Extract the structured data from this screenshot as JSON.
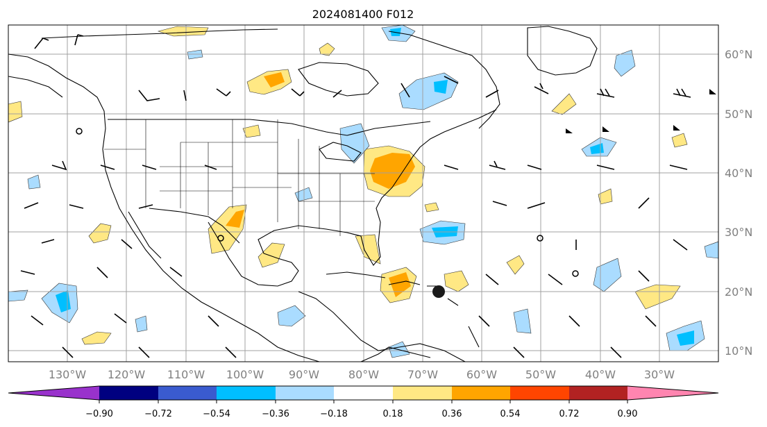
{
  "title": "2024081400 F012",
  "map": {
    "longitude_labels": [
      "130°W",
      "120°W",
      "110°W",
      "100°W",
      "90°W",
      "80°W",
      "70°W",
      "60°W",
      "50°W",
      "40°W",
      "30°W"
    ],
    "latitude_labels": [
      "60°N",
      "50°N",
      "40°N",
      "30°N",
      "20°N",
      "10°N"
    ],
    "gridlines": true,
    "land_outline_color": "#000000",
    "barb_color": "#000000",
    "hurricane_symbol": "filled-circle",
    "hurricane_symbol_color": "#1a1a1a"
  },
  "colorbar": {
    "orientation": "horizontal",
    "extend": "both",
    "tick_labels": [
      "−0.90",
      "−0.72",
      "−0.54",
      "−0.36",
      "−0.18",
      "0.18",
      "0.36",
      "0.54",
      "0.72",
      "0.90"
    ],
    "under_color": "#9932cc",
    "over_color": "#ff85b0",
    "colors": [
      "#000080",
      "#3a5bcf",
      "#00bfff",
      "#aadcff",
      "#ffffff",
      "#ffe884",
      "#ffa500",
      "#ff4500",
      "#b22222"
    ]
  }
}
